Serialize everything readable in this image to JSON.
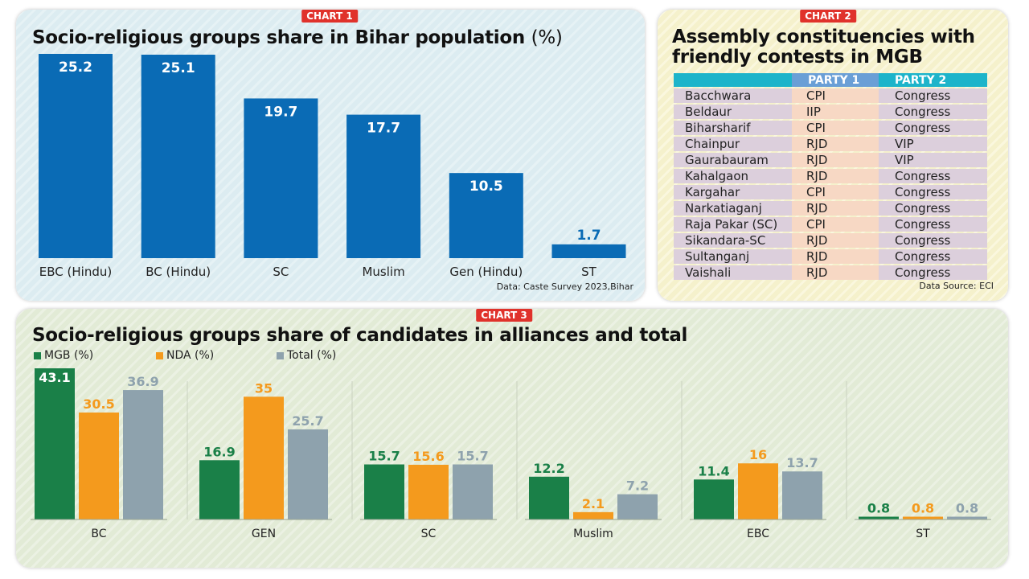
{
  "chart_data": [
    {
      "badge": "CHART 1",
      "type": "bar",
      "title": "Socio-religious groups share in Bihar population",
      "title_unit": "(%)",
      "categories": [
        "EBC (Hindu)",
        "BC (Hindu)",
        "SC",
        "Muslim",
        "Gen (Hindu)",
        "ST"
      ],
      "values": [
        25.2,
        25.1,
        19.7,
        17.7,
        10.5,
        1.7
      ],
      "ylim": [
        0,
        25.2
      ],
      "grid": false,
      "color": "#0a6bb5",
      "label_color": "#0a6bb5",
      "source": "Data: Caste Survey 2023,Bihar"
    },
    {
      "badge": "CHART 3",
      "type": "bar",
      "title": "Socio-religious groups share of candidates in alliances and total",
      "categories": [
        "BC",
        "GEN",
        "SC",
        "Muslim",
        "EBC",
        "ST"
      ],
      "series": [
        {
          "name": "MGB (%)",
          "color": "#1a8048",
          "values": [
            43.1,
            16.9,
            15.7,
            12.2,
            11.4,
            0.8
          ]
        },
        {
          "name": "NDA (%)",
          "color": "#f49a1d",
          "values": [
            30.5,
            35,
            15.6,
            2.1,
            16,
            0.8
          ]
        },
        {
          "name": "Total (%)",
          "color": "#8ea2ad",
          "values": [
            36.9,
            25.7,
            15.7,
            7.2,
            13.7,
            0.8
          ]
        }
      ],
      "ylim": [
        0,
        43.1
      ],
      "grid": false,
      "legend": "top-left"
    }
  ],
  "table": {
    "badge": "CHART 2",
    "title_line1": "Assembly constituencies with",
    "title_line2": "friendly contests in MGB",
    "headers": [
      "",
      "PARTY 1",
      "PARTY 2"
    ],
    "rows": [
      [
        "Bacchwara",
        "CPI",
        "Congress"
      ],
      [
        "Beldaur",
        "IIP",
        "Congress"
      ],
      [
        "Biharsharif",
        "CPI",
        "Congress"
      ],
      [
        "Chainpur",
        "RJD",
        "VIP"
      ],
      [
        "Gaurabauram",
        "RJD",
        "VIP"
      ],
      [
        "Kahalgaon",
        "RJD",
        "Congress"
      ],
      [
        "Kargahar",
        "CPI",
        "Congress"
      ],
      [
        "Narkatiaganj",
        "RJD",
        "Congress"
      ],
      [
        "Raja Pakar (SC)",
        "CPI",
        "Congress"
      ],
      [
        "Sikandara-SC",
        "RJD",
        "Congress"
      ],
      [
        "Sultanganj",
        "RJD",
        "Congress"
      ],
      [
        "Vaishali",
        "RJD",
        "Congress"
      ]
    ],
    "source": "Data Source: ECI"
  }
}
